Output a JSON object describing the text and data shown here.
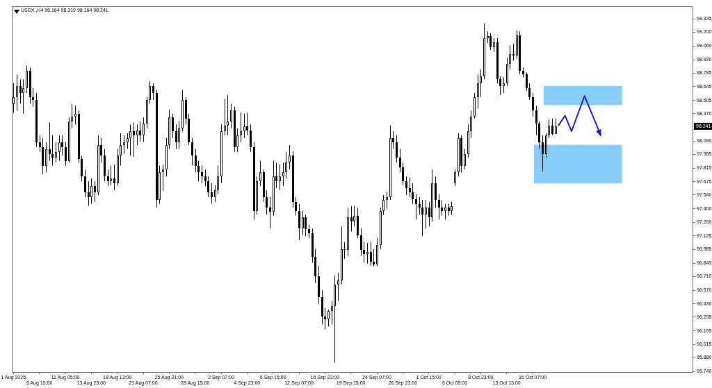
{
  "chart_data": {
    "type": "candlestick",
    "title": "USDX.,H4 98.164 98.319 98.164 98.241",
    "color": "#000000",
    "categories": [
      "1 Aug 2025",
      null,
      null,
      null,
      null,
      null,
      null,
      null,
      "6 Aug 15:00",
      null,
      null,
      null,
      null,
      null,
      null,
      null,
      "11 Aug 05:00",
      null,
      null,
      null,
      null,
      null,
      null,
      null,
      "13 Aug 23:00",
      null,
      null,
      null,
      null,
      null,
      null,
      null,
      "18 Aug 13:00",
      null,
      null,
      null,
      null,
      null,
      null,
      null,
      "21 Aug 07:00",
      null,
      null,
      null,
      null,
      null,
      null,
      null,
      "25 Aug 21:00",
      null,
      null,
      null,
      null,
      null,
      null,
      null,
      "28 Aug 15:00",
      null,
      null,
      null,
      null,
      null,
      null,
      null,
      "2 Sep 07:00",
      null,
      null,
      null,
      null,
      null,
      null,
      null,
      "4 Sep 23:00",
      null,
      null,
      null,
      null,
      null,
      null,
      null,
      "9 Sep 15:00",
      null,
      null,
      null,
      null,
      null,
      null,
      null,
      "12 Sep 07:00",
      null,
      null,
      null,
      null,
      null,
      null,
      null,
      "16 Sep 23:00",
      null,
      null,
      null,
      null,
      null,
      null,
      null,
      "19 Sep 15:00",
      null,
      null,
      null,
      null,
      null,
      null,
      null,
      "24 Sep 07:00",
      null,
      null,
      null,
      null,
      null,
      null,
      null,
      "26 Sep 23:00",
      null,
      null,
      null,
      null,
      null,
      null,
      null,
      "1 Oct 15:00",
      null,
      null,
      null,
      null,
      null,
      null,
      null,
      "6 Oct 05:00",
      null,
      null,
      null,
      null,
      null,
      null,
      null,
      "8 Oct 23:00",
      null,
      null,
      null,
      null,
      null,
      null,
      null,
      "13 Oct 13:00",
      null,
      null,
      null,
      null,
      null,
      null,
      null,
      "16 Oct 07:00",
      null,
      null,
      null,
      null,
      null,
      null,
      null,
      null,
      null,
      null,
      null,
      null,
      null,
      null,
      null,
      null,
      null,
      null,
      null,
      null,
      null,
      null,
      null,
      null,
      null,
      null,
      null,
      null,
      null,
      null,
      null,
      null,
      null,
      null,
      null,
      null,
      null,
      null,
      null,
      null,
      null,
      null,
      null,
      null,
      null,
      null,
      null,
      null,
      null
    ],
    "ohlc": [
      [
        98.47,
        98.68,
        98.38,
        98.54
      ],
      [
        98.54,
        98.77,
        98.4,
        98.65
      ],
      [
        98.65,
        98.72,
        98.47,
        98.58
      ],
      [
        98.58,
        98.72,
        98.37,
        98.63
      ],
      [
        98.63,
        98.86,
        98.58,
        98.81
      ],
      [
        98.81,
        98.84,
        98.47,
        98.54
      ],
      [
        98.54,
        98.63,
        98.44,
        98.51
      ],
      [
        98.51,
        98.58,
        98.03,
        98.08
      ],
      [
        98.08,
        98.15,
        97.98,
        98.03
      ],
      [
        98.03,
        98.12,
        97.75,
        97.84
      ],
      [
        97.84,
        98.08,
        97.77,
        98.01
      ],
      [
        98.01,
        98.28,
        97.89,
        97.96
      ],
      [
        97.96,
        98.15,
        97.84,
        97.92
      ],
      [
        97.92,
        98.08,
        97.87,
        97.98
      ],
      [
        97.98,
        98.15,
        97.89,
        98.08
      ],
      [
        98.08,
        98.15,
        97.94,
        98.03
      ],
      [
        98.03,
        98.08,
        97.84,
        97.89
      ],
      [
        97.89,
        98.33,
        97.87,
        98.29
      ],
      [
        98.29,
        98.47,
        98.22,
        98.34
      ],
      [
        98.34,
        98.45,
        98.26,
        98.37
      ],
      [
        98.37,
        98.4,
        97.87,
        97.91
      ],
      [
        97.91,
        97.94,
        97.68,
        97.73
      ],
      [
        97.73,
        97.8,
        97.52,
        97.57
      ],
      [
        97.57,
        97.68,
        97.43,
        97.52
      ],
      [
        97.52,
        97.71,
        97.45,
        97.63
      ],
      [
        97.63,
        97.68,
        97.47,
        97.57
      ],
      [
        97.57,
        98.15,
        97.54,
        98.05
      ],
      [
        98.05,
        98.12,
        97.87,
        97.94
      ],
      [
        97.94,
        98.01,
        97.68,
        97.73
      ],
      [
        97.73,
        97.8,
        97.63,
        97.68
      ],
      [
        97.68,
        97.84,
        97.64,
        97.71
      ],
      [
        97.71,
        97.85,
        97.59,
        97.66
      ],
      [
        97.66,
        98.01,
        97.63,
        97.94
      ],
      [
        97.94,
        98.17,
        97.84,
        98.05
      ],
      [
        98.05,
        98.15,
        97.96,
        98.08
      ],
      [
        98.08,
        98.17,
        98.01,
        98.12
      ],
      [
        98.12,
        98.26,
        97.94,
        98.19
      ],
      [
        98.19,
        98.28,
        97.93,
        98.15
      ],
      [
        98.15,
        98.26,
        98.05,
        98.2
      ],
      [
        98.2,
        98.29,
        98.08,
        98.15
      ],
      [
        98.15,
        98.33,
        98.08,
        98.27
      ],
      [
        98.27,
        98.54,
        98.22,
        98.51
      ],
      [
        98.51,
        98.7,
        98.47,
        98.65
      ],
      [
        98.65,
        98.68,
        98.51,
        98.58
      ],
      [
        98.58,
        98.61,
        97.41,
        97.49
      ],
      [
        97.49,
        97.84,
        97.45,
        97.77
      ],
      [
        97.77,
        97.85,
        97.58,
        97.8
      ],
      [
        97.8,
        98.12,
        97.73,
        98.05
      ],
      [
        98.05,
        98.41,
        98.01,
        98.33
      ],
      [
        98.33,
        98.37,
        98.12,
        98.19
      ],
      [
        98.19,
        98.26,
        98.01,
        98.08
      ],
      [
        98.08,
        98.29,
        98.01,
        98.22
      ],
      [
        98.22,
        98.61,
        98.19,
        98.51
      ],
      [
        98.51,
        98.54,
        98.26,
        98.32
      ],
      [
        98.32,
        98.37,
        98.05,
        98.08
      ],
      [
        98.08,
        98.12,
        97.84,
        97.94
      ],
      [
        97.94,
        98.01,
        97.77,
        97.84
      ],
      [
        97.84,
        97.89,
        97.68,
        97.77
      ],
      [
        97.77,
        97.84,
        97.66,
        97.73
      ],
      [
        97.73,
        97.8,
        97.63,
        97.68
      ],
      [
        97.68,
        97.73,
        97.52,
        97.57
      ],
      [
        97.57,
        97.66,
        97.45,
        97.52
      ],
      [
        97.52,
        97.64,
        97.47,
        97.59
      ],
      [
        97.59,
        97.84,
        97.55,
        97.73
      ],
      [
        97.73,
        98.26,
        97.66,
        98.19
      ],
      [
        98.19,
        98.52,
        98.15,
        98.25
      ],
      [
        98.25,
        98.56,
        98.15,
        98.29
      ],
      [
        98.29,
        98.47,
        98.22,
        98.4
      ],
      [
        98.4,
        98.44,
        97.98,
        98.03
      ],
      [
        98.03,
        98.22,
        97.98,
        98.15
      ],
      [
        98.15,
        98.38,
        98.08,
        98.19
      ],
      [
        98.19,
        98.37,
        98.12,
        98.24
      ],
      [
        98.24,
        98.38,
        98.15,
        98.2
      ],
      [
        98.2,
        98.26,
        97.98,
        98.03
      ],
      [
        98.03,
        98.08,
        97.29,
        97.38
      ],
      [
        97.38,
        97.73,
        97.34,
        97.68
      ],
      [
        97.68,
        97.89,
        97.63,
        97.77
      ],
      [
        97.77,
        97.8,
        97.47,
        97.52
      ],
      [
        97.52,
        97.59,
        97.34,
        97.41
      ],
      [
        97.41,
        97.52,
        97.2,
        97.37
      ],
      [
        97.37,
        97.89,
        97.33,
        97.73
      ],
      [
        97.73,
        97.87,
        97.61,
        97.68
      ],
      [
        97.68,
        97.85,
        97.59,
        97.73
      ],
      [
        97.73,
        97.87,
        97.63,
        97.77
      ],
      [
        97.77,
        97.98,
        97.71,
        97.87
      ],
      [
        97.87,
        98.05,
        97.8,
        97.94
      ],
      [
        97.94,
        97.99,
        97.41,
        97.47
      ],
      [
        97.47,
        97.52,
        97.33,
        97.38
      ],
      [
        97.38,
        97.45,
        97.08,
        97.2
      ],
      [
        97.2,
        97.38,
        97.13,
        97.31
      ],
      [
        97.31,
        97.34,
        97.12,
        97.19
      ],
      [
        97.19,
        97.24,
        97.1,
        97.15
      ],
      [
        97.15,
        97.2,
        96.85,
        96.91
      ],
      [
        96.91,
        96.99,
        96.64,
        96.71
      ],
      [
        96.71,
        96.82,
        96.43,
        96.5
      ],
      [
        96.5,
        96.57,
        96.22,
        96.3
      ],
      [
        96.3,
        96.39,
        96.17,
        96.27
      ],
      [
        96.27,
        96.37,
        96.2,
        96.36
      ],
      [
        96.36,
        96.46,
        96.22,
        96.41
      ],
      [
        96.41,
        96.72,
        95.83,
        96.63
      ],
      [
        96.63,
        96.75,
        96.46,
        96.67
      ],
      [
        96.67,
        97.22,
        96.63,
        96.99
      ],
      [
        96.99,
        97.06,
        96.89,
        96.98
      ],
      [
        96.98,
        97.41,
        96.92,
        97.31
      ],
      [
        97.31,
        97.43,
        97.17,
        97.27
      ],
      [
        97.27,
        97.43,
        97.22,
        97.33
      ],
      [
        97.33,
        97.41,
        97.1,
        97.13
      ],
      [
        97.13,
        97.2,
        96.92,
        96.98
      ],
      [
        96.98,
        97.06,
        96.85,
        96.94
      ],
      [
        96.94,
        97.05,
        96.84,
        96.96
      ],
      [
        96.96,
        97.06,
        96.82,
        96.86
      ],
      [
        96.86,
        96.99,
        96.81,
        96.83
      ],
      [
        96.83,
        97.1,
        96.81,
        97.03
      ],
      [
        97.03,
        97.41,
        96.99,
        97.38
      ],
      [
        97.38,
        97.54,
        97.34,
        97.49
      ],
      [
        97.49,
        97.57,
        97.4,
        97.52
      ],
      [
        97.52,
        98.25,
        97.49,
        98.12
      ],
      [
        98.12,
        98.19,
        98.01,
        98.08
      ],
      [
        98.08,
        98.15,
        97.87,
        97.92
      ],
      [
        97.92,
        98.01,
        97.77,
        97.82
      ],
      [
        97.82,
        97.87,
        97.64,
        97.68
      ],
      [
        97.68,
        97.73,
        97.54,
        97.61
      ],
      [
        97.61,
        97.72,
        97.52,
        97.57
      ],
      [
        97.57,
        97.66,
        97.45,
        97.5
      ],
      [
        97.5,
        97.55,
        97.29,
        97.45
      ],
      [
        97.45,
        97.52,
        97.34,
        97.41
      ],
      [
        97.41,
        97.49,
        97.12,
        97.34
      ],
      [
        97.34,
        97.49,
        97.2,
        97.41
      ],
      [
        97.41,
        97.47,
        97.22,
        97.31
      ],
      [
        97.31,
        97.8,
        97.27,
        97.66
      ],
      [
        97.66,
        97.73,
        97.41,
        97.49
      ],
      [
        97.49,
        97.55,
        97.29,
        97.41
      ],
      [
        97.41,
        97.49,
        97.33,
        97.38
      ],
      [
        97.38,
        97.45,
        97.29,
        97.41
      ],
      [
        97.41,
        97.45,
        97.33,
        97.38
      ],
      [
        97.38,
        97.47,
        97.34,
        97.43
      ],
      [
        97.66,
        97.8,
        97.63,
        97.77
      ],
      [
        97.77,
        98.17,
        97.73,
        98.12
      ],
      [
        98.12,
        98.15,
        97.77,
        97.84
      ],
      [
        97.84,
        98.01,
        97.8,
        97.96
      ],
      [
        97.96,
        98.26,
        97.92,
        98.19
      ],
      [
        98.19,
        98.4,
        98.12,
        98.34
      ],
      [
        98.34,
        98.58,
        98.32,
        98.54
      ],
      [
        98.54,
        98.77,
        98.42,
        98.68
      ],
      [
        98.68,
        98.82,
        98.54,
        98.75
      ],
      [
        98.75,
        99.29,
        98.72,
        99.14
      ],
      [
        99.14,
        99.21,
        99.09,
        99.16
      ],
      [
        99.16,
        99.19,
        99.02,
        99.05
      ],
      [
        99.05,
        99.14,
        99.0,
        99.1
      ],
      [
        99.1,
        99.14,
        98.68,
        98.72
      ],
      [
        98.72,
        98.75,
        98.56,
        98.65
      ],
      [
        98.65,
        98.74,
        98.58,
        98.68
      ],
      [
        98.68,
        98.94,
        98.65,
        98.88
      ],
      [
        98.88,
        99.07,
        98.82,
        98.98
      ],
      [
        98.98,
        99.08,
        98.91,
        98.96
      ],
      [
        98.96,
        99.22,
        98.93,
        99.17
      ],
      [
        99.17,
        99.21,
        98.77,
        98.81
      ],
      [
        98.81,
        98.84,
        98.74,
        98.77
      ],
      [
        98.77,
        98.79,
        98.6,
        98.63
      ],
      [
        98.63,
        98.68,
        98.51,
        98.54
      ],
      [
        98.54,
        98.58,
        98.34,
        98.4
      ],
      [
        98.4,
        98.45,
        98.15,
        98.27
      ],
      [
        98.27,
        98.29,
        98.01,
        98.08
      ],
      [
        98.08,
        98.15,
        97.78,
        97.96
      ],
      [
        97.96,
        98.17,
        97.92,
        98.15
      ],
      [
        98.15,
        98.31,
        98.12,
        98.25
      ],
      [
        98.25,
        98.32,
        98.15,
        98.16
      ],
      [
        98.164,
        98.319,
        98.164,
        98.241
      ],
      null,
      null,
      null,
      null,
      null,
      null,
      null,
      null,
      null,
      null,
      null,
      null,
      null,
      null,
      null,
      null,
      null,
      null,
      null,
      null,
      null,
      null,
      null,
      null,
      null,
      null,
      null,
      null,
      null,
      null,
      null,
      null,
      null,
      null,
      null,
      null,
      null,
      null,
      null,
      null,
      null,
      null
    ],
    "series": [
      {
        "type": "bar",
        "color": "#87cefa",
        "values": [
          null,
          null,
          null,
          null,
          null,
          null,
          null,
          null,
          null,
          null,
          null,
          null,
          null,
          null,
          null,
          null,
          null,
          null,
          null,
          null,
          null,
          null,
          null,
          null,
          null,
          null,
          null,
          null,
          null,
          null,
          null,
          null,
          null,
          null,
          null,
          null,
          null,
          null,
          null,
          null,
          null,
          null,
          null,
          null,
          null,
          null,
          null,
          null,
          null,
          null,
          null,
          null,
          null,
          null,
          null,
          null,
          null,
          null,
          null,
          null,
          null,
          null,
          null,
          null,
          null,
          null,
          null,
          null,
          null,
          null,
          null,
          null,
          null,
          null,
          null,
          null,
          null,
          null,
          null,
          null,
          null,
          null,
          null,
          null,
          null,
          null,
          null,
          null,
          null,
          null,
          null,
          null,
          null,
          null,
          null,
          null,
          null,
          null,
          null,
          null,
          null,
          null,
          null,
          null,
          null,
          null,
          null,
          null,
          null,
          null,
          null,
          null,
          null,
          null,
          null,
          null,
          null,
          null,
          null,
          null,
          null,
          null,
          null,
          null,
          null,
          null,
          null,
          null,
          null,
          null,
          null,
          null,
          null,
          null,
          null,
          null,
          null,
          null,
          null,
          null,
          null,
          null,
          null,
          null,
          null,
          null,
          null,
          null,
          null,
          null,
          null,
          null,
          null,
          null,
          null,
          null,
          null,
          null,
          null,
          null,
          null,
          null,
          null,
          null,
          0.19,
          0.19,
          0.19,
          0.19,
          0.19,
          0.19,
          0.19,
          0.19,
          0.19,
          0.19,
          0.19,
          0.19,
          0.19,
          0.19,
          0.19,
          0.19,
          0.19,
          0.19,
          0.19,
          0.19,
          0.19,
          0.19,
          0.19,
          0.19,
          null,
          null,
          null,
          null,
          null,
          null,
          null,
          null,
          null,
          null,
          null,
          null,
          null,
          null,
          null,
          null,
          null,
          null,
          null,
          null,
          null,
          null
        ],
        "base": [
          null,
          null,
          null,
          null,
          null,
          null,
          null,
          null,
          null,
          null,
          null,
          null,
          null,
          null,
          null,
          null,
          null,
          null,
          null,
          null,
          null,
          null,
          null,
          null,
          null,
          null,
          null,
          null,
          null,
          null,
          null,
          null,
          null,
          null,
          null,
          null,
          null,
          null,
          null,
          null,
          null,
          null,
          null,
          null,
          null,
          null,
          null,
          null,
          null,
          null,
          null,
          null,
          null,
          null,
          null,
          null,
          null,
          null,
          null,
          null,
          null,
          null,
          null,
          null,
          null,
          null,
          null,
          null,
          null,
          null,
          null,
          null,
          null,
          null,
          null,
          null,
          null,
          null,
          null,
          null,
          null,
          null,
          null,
          null,
          null,
          null,
          null,
          null,
          null,
          null,
          null,
          null,
          null,
          null,
          null,
          null,
          null,
          null,
          null,
          null,
          null,
          null,
          null,
          null,
          null,
          null,
          null,
          null,
          null,
          null,
          null,
          null,
          null,
          null,
          null,
          null,
          null,
          null,
          null,
          null,
          null,
          null,
          null,
          null,
          null,
          null,
          null,
          null,
          null,
          null,
          null,
          null,
          null,
          null,
          null,
          null,
          null,
          null,
          null,
          null,
          null,
          null,
          null,
          null,
          null,
          null,
          null,
          null,
          null,
          null,
          null,
          null,
          null,
          null,
          null,
          null,
          null,
          null,
          null,
          null,
          null,
          null,
          null,
          null,
          98.46,
          98.46,
          98.46,
          98.46,
          98.46,
          98.46,
          98.46,
          98.46,
          98.46,
          98.46,
          98.46,
          98.46,
          98.46,
          98.46,
          98.46,
          98.46,
          98.46,
          98.46,
          98.46,
          98.46,
          98.46,
          98.46,
          98.46,
          98.46,
          null,
          null,
          null,
          null,
          null,
          null,
          null,
          null,
          null,
          null,
          null,
          null,
          null,
          null,
          null,
          null,
          null,
          null,
          null,
          null,
          null,
          null
        ]
      },
      {
        "type": "bar",
        "color": "#87cefa",
        "values": [
          null,
          null,
          null,
          null,
          null,
          null,
          null,
          null,
          null,
          null,
          null,
          null,
          null,
          null,
          null,
          null,
          null,
          null,
          null,
          null,
          null,
          null,
          null,
          null,
          null,
          null,
          null,
          null,
          null,
          null,
          null,
          null,
          null,
          null,
          null,
          null,
          null,
          null,
          null,
          null,
          null,
          null,
          null,
          null,
          null,
          null,
          null,
          null,
          null,
          null,
          null,
          null,
          null,
          null,
          null,
          null,
          null,
          null,
          null,
          null,
          null,
          null,
          null,
          null,
          null,
          null,
          null,
          null,
          null,
          null,
          null,
          null,
          null,
          null,
          null,
          null,
          null,
          null,
          null,
          null,
          null,
          null,
          null,
          null,
          null,
          null,
          null,
          null,
          null,
          null,
          null,
          null,
          null,
          null,
          null,
          null,
          null,
          null,
          null,
          null,
          null,
          null,
          null,
          null,
          null,
          null,
          null,
          null,
          null,
          null,
          null,
          null,
          null,
          null,
          null,
          null,
          null,
          null,
          null,
          null,
          null,
          null,
          null,
          null,
          null,
          null,
          null,
          null,
          null,
          null,
          null,
          null,
          null,
          null,
          null,
          null,
          null,
          null,
          null,
          null,
          null,
          null,
          null,
          null,
          null,
          null,
          null,
          null,
          null,
          null,
          null,
          null,
          null,
          null,
          null,
          null,
          null,
          null,
          null,
          null,
          null,
          0.39,
          0.39,
          0.39,
          0.39,
          0.39,
          0.39,
          0.39,
          0.39,
          0.39,
          0.39,
          0.39,
          0.39,
          0.39,
          0.39,
          0.39,
          0.39,
          0.39,
          0.39,
          0.39,
          0.39,
          0.39,
          0.39,
          0.39,
          0.39,
          0.39,
          0.39,
          0.39,
          null,
          null,
          null,
          null,
          null,
          null,
          null,
          null,
          null,
          null,
          null,
          null,
          null,
          null,
          null,
          null,
          null,
          null,
          null,
          null,
          null,
          null
        ],
        "base": [
          null,
          null,
          null,
          null,
          null,
          null,
          null,
          null,
          null,
          null,
          null,
          null,
          null,
          null,
          null,
          null,
          null,
          null,
          null,
          null,
          null,
          null,
          null,
          null,
          null,
          null,
          null,
          null,
          null,
          null,
          null,
          null,
          null,
          null,
          null,
          null,
          null,
          null,
          null,
          null,
          null,
          null,
          null,
          null,
          null,
          null,
          null,
          null,
          null,
          null,
          null,
          null,
          null,
          null,
          null,
          null,
          null,
          null,
          null,
          null,
          null,
          null,
          null,
          null,
          null,
          null,
          null,
          null,
          null,
          null,
          null,
          null,
          null,
          null,
          null,
          null,
          null,
          null,
          null,
          null,
          null,
          null,
          null,
          null,
          null,
          null,
          null,
          null,
          null,
          null,
          null,
          null,
          null,
          null,
          null,
          null,
          null,
          null,
          null,
          null,
          null,
          null,
          null,
          null,
          null,
          null,
          null,
          null,
          null,
          null,
          null,
          null,
          null,
          null,
          null,
          null,
          null,
          null,
          null,
          null,
          null,
          null,
          null,
          null,
          null,
          null,
          null,
          null,
          null,
          null,
          null,
          null,
          null,
          null,
          null,
          null,
          null,
          null,
          null,
          null,
          null,
          null,
          null,
          null,
          null,
          null,
          null,
          null,
          null,
          null,
          null,
          null,
          null,
          null,
          null,
          null,
          null,
          null,
          null,
          null,
          null,
          97.66,
          97.66,
          97.66,
          97.66,
          97.66,
          97.66,
          97.66,
          97.66,
          97.66,
          97.66,
          97.66,
          97.66,
          97.66,
          97.66,
          97.66,
          97.66,
          97.66,
          97.66,
          97.66,
          97.66,
          97.66,
          97.66,
          97.66,
          97.66,
          97.66,
          97.66,
          97.66,
          null,
          null,
          null,
          null,
          null,
          null,
          null,
          null,
          null,
          null,
          null,
          null,
          null,
          null,
          null,
          null,
          null,
          null,
          null,
          null,
          null,
          null
        ]
      },
      {
        "type": "line",
        "color": "#1f1fc8",
        "values": [
          null,
          null,
          null,
          null,
          null,
          null,
          null,
          null,
          null,
          null,
          null,
          null,
          null,
          null,
          null,
          null,
          null,
          null,
          null,
          null,
          null,
          null,
          null,
          null,
          null,
          null,
          null,
          null,
          null,
          null,
          null,
          null,
          null,
          null,
          null,
          null,
          null,
          null,
          null,
          null,
          null,
          null,
          null,
          null,
          null,
          null,
          null,
          null,
          null,
          null,
          null,
          null,
          null,
          null,
          null,
          null,
          null,
          null,
          null,
          null,
          null,
          null,
          null,
          null,
          null,
          null,
          null,
          null,
          null,
          null,
          null,
          null,
          null,
          null,
          null,
          null,
          null,
          null,
          null,
          null,
          null,
          null,
          null,
          null,
          null,
          null,
          null,
          null,
          null,
          null,
          null,
          null,
          null,
          null,
          null,
          null,
          null,
          null,
          null,
          null,
          null,
          null,
          null,
          null,
          null,
          null,
          null,
          null,
          null,
          null,
          null,
          null,
          null,
          null,
          null,
          null,
          null,
          null,
          null,
          null,
          null,
          null,
          null,
          null,
          null,
          null,
          null,
          null,
          null,
          null,
          null,
          null,
          null,
          null,
          null,
          null,
          null,
          null,
          null,
          null,
          null,
          null,
          null,
          null,
          null,
          null,
          null,
          null,
          null,
          null,
          null,
          null,
          null,
          null,
          null,
          null,
          null,
          null,
          null,
          null,
          null,
          null,
          null,
          null,
          null,
          null,
          null,
          null,
          98.25,
          98.3,
          98.35,
          98.27,
          98.19,
          98.28,
          98.37,
          98.46,
          98.55,
          98.47,
          98.39,
          98.31,
          98.23,
          98.15,
          null,
          null,
          null,
          null,
          null,
          null,
          null,
          null,
          null,
          null,
          null,
          null,
          null,
          null,
          null,
          null,
          null,
          null,
          null,
          null,
          null,
          null,
          null,
          null,
          null,
          null,
          null,
          null
        ]
      }
    ],
    "ylim": [
      95.735,
      99.465
    ],
    "yticks": [
      99.335,
      {
        "value": 99.2,
        "label": "99.200"
      },
      {
        "value": 99.06,
        "label": "99.060"
      },
      {
        "value": 98.92,
        "label": "98.920"
      },
      98.785,
      98.645,
      98.505,
      {
        "value": 98.37,
        "label": "98.370"
      },
      {
        "value": 98.09,
        "label": "98.090"
      },
      97.955,
      97.815,
      97.675,
      {
        "value": 97.54,
        "label": "97.540"
      },
      {
        "value": 97.4,
        "label": "97.400"
      },
      {
        "value": 97.26,
        "label": "97.260"
      },
      97.125,
      96.985,
      96.845,
      {
        "value": 96.71,
        "label": "96.710"
      },
      {
        "value": 96.57,
        "label": "96.570"
      },
      {
        "value": 96.43,
        "label": "96.430"
      },
      96.295,
      96.155,
      96.015,
      {
        "value": 95.88,
        "label": "95.880"
      },
      {
        "value": 95.74,
        "label": "95.740"
      }
    ],
    "annotations": [
      {
        "text": "98.241",
        "y": 98.241
      }
    ]
  }
}
